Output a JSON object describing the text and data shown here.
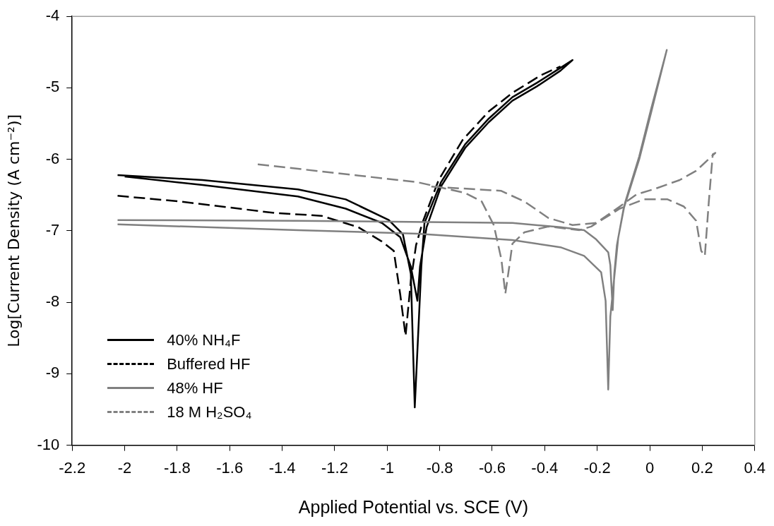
{
  "chart_data": {
    "type": "line",
    "xlabel": "Applied Potential vs. SCE (V)",
    "ylabel": "Log[Current Density (A cm⁻²)]",
    "xlim": [
      -2.2,
      0.4
    ],
    "xticks": [
      -2.2,
      -2,
      -1.8,
      -1.6,
      -1.4,
      -1.2,
      -1,
      -0.8,
      -0.6,
      -0.4,
      -0.2,
      0,
      0.2,
      0.4
    ],
    "ylim": [
      -10,
      -4
    ],
    "yticks": [
      -10,
      -9,
      -8,
      -7,
      -6,
      -5,
      -4
    ],
    "grid": false,
    "legend": "bottom left",
    "marker": "none",
    "series": [
      {
        "name": "40% NH₄F",
        "color": "#000000",
        "line_style": "solid",
        "x": [
          -2.027,
          -1.703,
          -1.34,
          -1.158,
          -0.994,
          -0.94,
          -0.91,
          -0.895,
          -0.87,
          -0.858,
          -0.795,
          -0.703,
          -0.613,
          -0.523,
          -0.43,
          -0.34,
          -0.294,
          -0.34,
          -0.43,
          -0.523,
          -0.613,
          -0.703,
          -0.795,
          -0.85,
          -0.875,
          -0.885,
          -0.91,
          -0.95,
          -1.02,
          -1.158,
          -1.34,
          -1.703,
          -2.0
        ],
        "values": [
          -6.22,
          -6.29,
          -6.42,
          -6.56,
          -6.85,
          -7.05,
          -7.6,
          -9.47,
          -7.5,
          -6.89,
          -6.32,
          -5.79,
          -5.43,
          -5.13,
          -4.93,
          -4.72,
          -4.61,
          -4.76,
          -4.98,
          -5.18,
          -5.48,
          -5.84,
          -6.38,
          -6.95,
          -7.5,
          -7.98,
          -7.5,
          -7.09,
          -6.89,
          -6.69,
          -6.52,
          -6.36,
          -6.24
        ]
      },
      {
        "name": "Buffered HF",
        "color": "#000000",
        "line_style": "dashed",
        "x": [
          -2.027,
          -1.79,
          -1.43,
          -1.25,
          -1.11,
          -1.02,
          -0.975,
          -0.95,
          -0.93,
          -0.91,
          -0.89,
          -0.866,
          -0.804,
          -0.713,
          -0.613,
          -0.523,
          -0.413,
          -0.34
        ],
        "values": [
          -6.51,
          -6.59,
          -6.75,
          -6.79,
          -6.95,
          -7.15,
          -7.28,
          -7.9,
          -8.47,
          -7.7,
          -7.2,
          -6.89,
          -6.29,
          -5.73,
          -5.33,
          -5.07,
          -4.82,
          -4.7
        ]
      },
      {
        "name": "48% HF",
        "color": "#808080",
        "line_style": "solid",
        "x": [
          -2.027,
          -1.34,
          -0.885,
          -0.523,
          -0.34,
          -0.25,
          -0.185,
          -0.168,
          -0.163,
          -0.158,
          -0.15,
          -0.12,
          -0.095,
          -0.04,
          0.005,
          0.065,
          0.005,
          -0.04,
          -0.1,
          -0.125,
          -0.135,
          -0.141,
          -0.15,
          -0.158,
          -0.204,
          -0.25,
          -0.34,
          -0.523,
          -1.34,
          -2.027
        ],
        "values": [
          -6.91,
          -6.99,
          -7.04,
          -7.13,
          -7.23,
          -7.35,
          -7.58,
          -7.98,
          -8.6,
          -9.22,
          -8.2,
          -7.1,
          -6.62,
          -5.96,
          -5.3,
          -4.47,
          -5.35,
          -6.0,
          -6.7,
          -7.2,
          -7.6,
          -8.11,
          -7.48,
          -7.3,
          -7.12,
          -6.99,
          -6.95,
          -6.89,
          -6.86,
          -6.85
        ]
      },
      {
        "name": "18 M H₂SO₄",
        "color": "#808080",
        "line_style": "dashed",
        "x": [
          -1.493,
          -1.248,
          -0.885,
          -0.703,
          -0.64,
          -0.594,
          -0.565,
          -0.55,
          -0.535,
          -0.523,
          -0.477,
          -0.386,
          -0.268,
          -0.223,
          -0.114,
          -0.022,
          0.068,
          0.13,
          0.177,
          0.196,
          0.21,
          0.225,
          0.24,
          0.25,
          0.177,
          0.114,
          0.022,
          -0.05,
          -0.114,
          -0.204,
          -0.294,
          -0.386,
          -0.477,
          -0.567,
          -0.66,
          -0.795,
          -0.84
        ],
        "values": [
          -6.07,
          -6.17,
          -6.32,
          -6.47,
          -6.59,
          -6.92,
          -7.4,
          -7.88,
          -7.5,
          -7.18,
          -7.02,
          -6.94,
          -6.99,
          -6.94,
          -6.69,
          -6.56,
          -6.56,
          -6.66,
          -6.86,
          -7.28,
          -7.35,
          -6.6,
          -5.93,
          -5.91,
          -6.16,
          -6.29,
          -6.41,
          -6.49,
          -6.66,
          -6.89,
          -6.92,
          -6.82,
          -6.59,
          -6.44,
          -6.42,
          -6.39,
          -6.38
        ]
      }
    ]
  }
}
